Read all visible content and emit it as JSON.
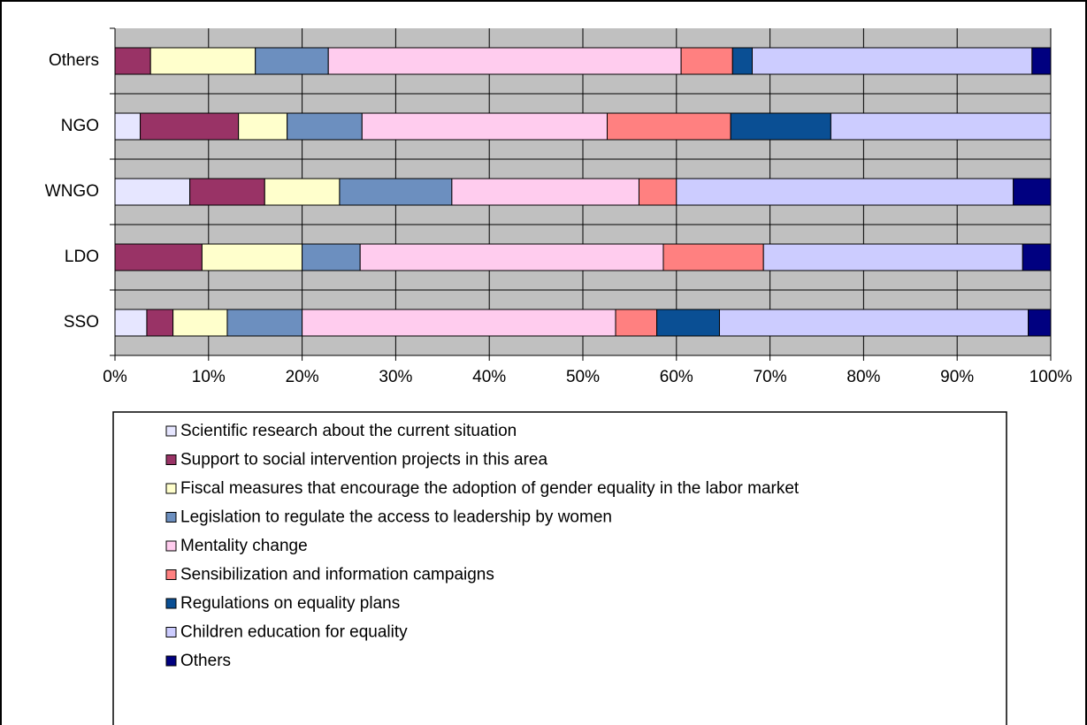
{
  "chart_data": {
    "type": "stacked_barh",
    "categories": [
      "SSO",
      "LDO",
      "WNGO",
      "NGO",
      "Others"
    ],
    "series": [
      {
        "name": "Scientific research about the current situation",
        "color": "#e6e6ff",
        "values": [
          3.4,
          0,
          8.0,
          2.7,
          0
        ]
      },
      {
        "name": "Support to social intervention projects in this area",
        "color": "#993366",
        "values": [
          2.8,
          9.3,
          8.0,
          10.5,
          3.8
        ]
      },
      {
        "name": "Fiscal measures that encourage the adoption of gender equality in the labor market",
        "color": "#ffffcc",
        "values": [
          5.8,
          10.7,
          8.0,
          5.2,
          11.2
        ]
      },
      {
        "name": "Legislation to regulate the access to leadership by women",
        "color": "#6c8fbf",
        "values": [
          8.0,
          6.2,
          12.0,
          8.0,
          7.8
        ]
      },
      {
        "name": "Mentality change",
        "color": "#ffccee",
        "values": [
          33.5,
          32.4,
          20.0,
          26.2,
          37.7
        ]
      },
      {
        "name": "Sensibilization and  information campaigns",
        "color": "#ff8080",
        "values": [
          4.4,
          10.7,
          4.0,
          13.2,
          5.5
        ]
      },
      {
        "name": "Regulations on equality plans",
        "color": "#0a4f94",
        "values": [
          6.7,
          0,
          0,
          10.7,
          2.1
        ]
      },
      {
        "name": "Children education for equality",
        "color": "#ccccff",
        "values": [
          33.0,
          27.7,
          36.0,
          23.5,
          29.9
        ]
      },
      {
        "name": "Others",
        "color": "#000080",
        "values": [
          2.4,
          3.0,
          4.0,
          0,
          2.0
        ]
      }
    ],
    "xlim": [
      0,
      100
    ],
    "xticks": [
      {
        "value": 0,
        "label": "0%"
      },
      {
        "value": 10,
        "label": "10%"
      },
      {
        "value": 20,
        "label": "20%"
      },
      {
        "value": 30,
        "label": "30%"
      },
      {
        "value": 40,
        "label": "40%"
      },
      {
        "value": 50,
        "label": "50%"
      },
      {
        "value": 60,
        "label": "60%"
      },
      {
        "value": 70,
        "label": "70%"
      },
      {
        "value": 80,
        "label": "80%"
      },
      {
        "value": 90,
        "label": "90%"
      },
      {
        "value": 100,
        "label": "100%"
      }
    ],
    "grid": true,
    "plot_background": "#c0c0c0"
  }
}
